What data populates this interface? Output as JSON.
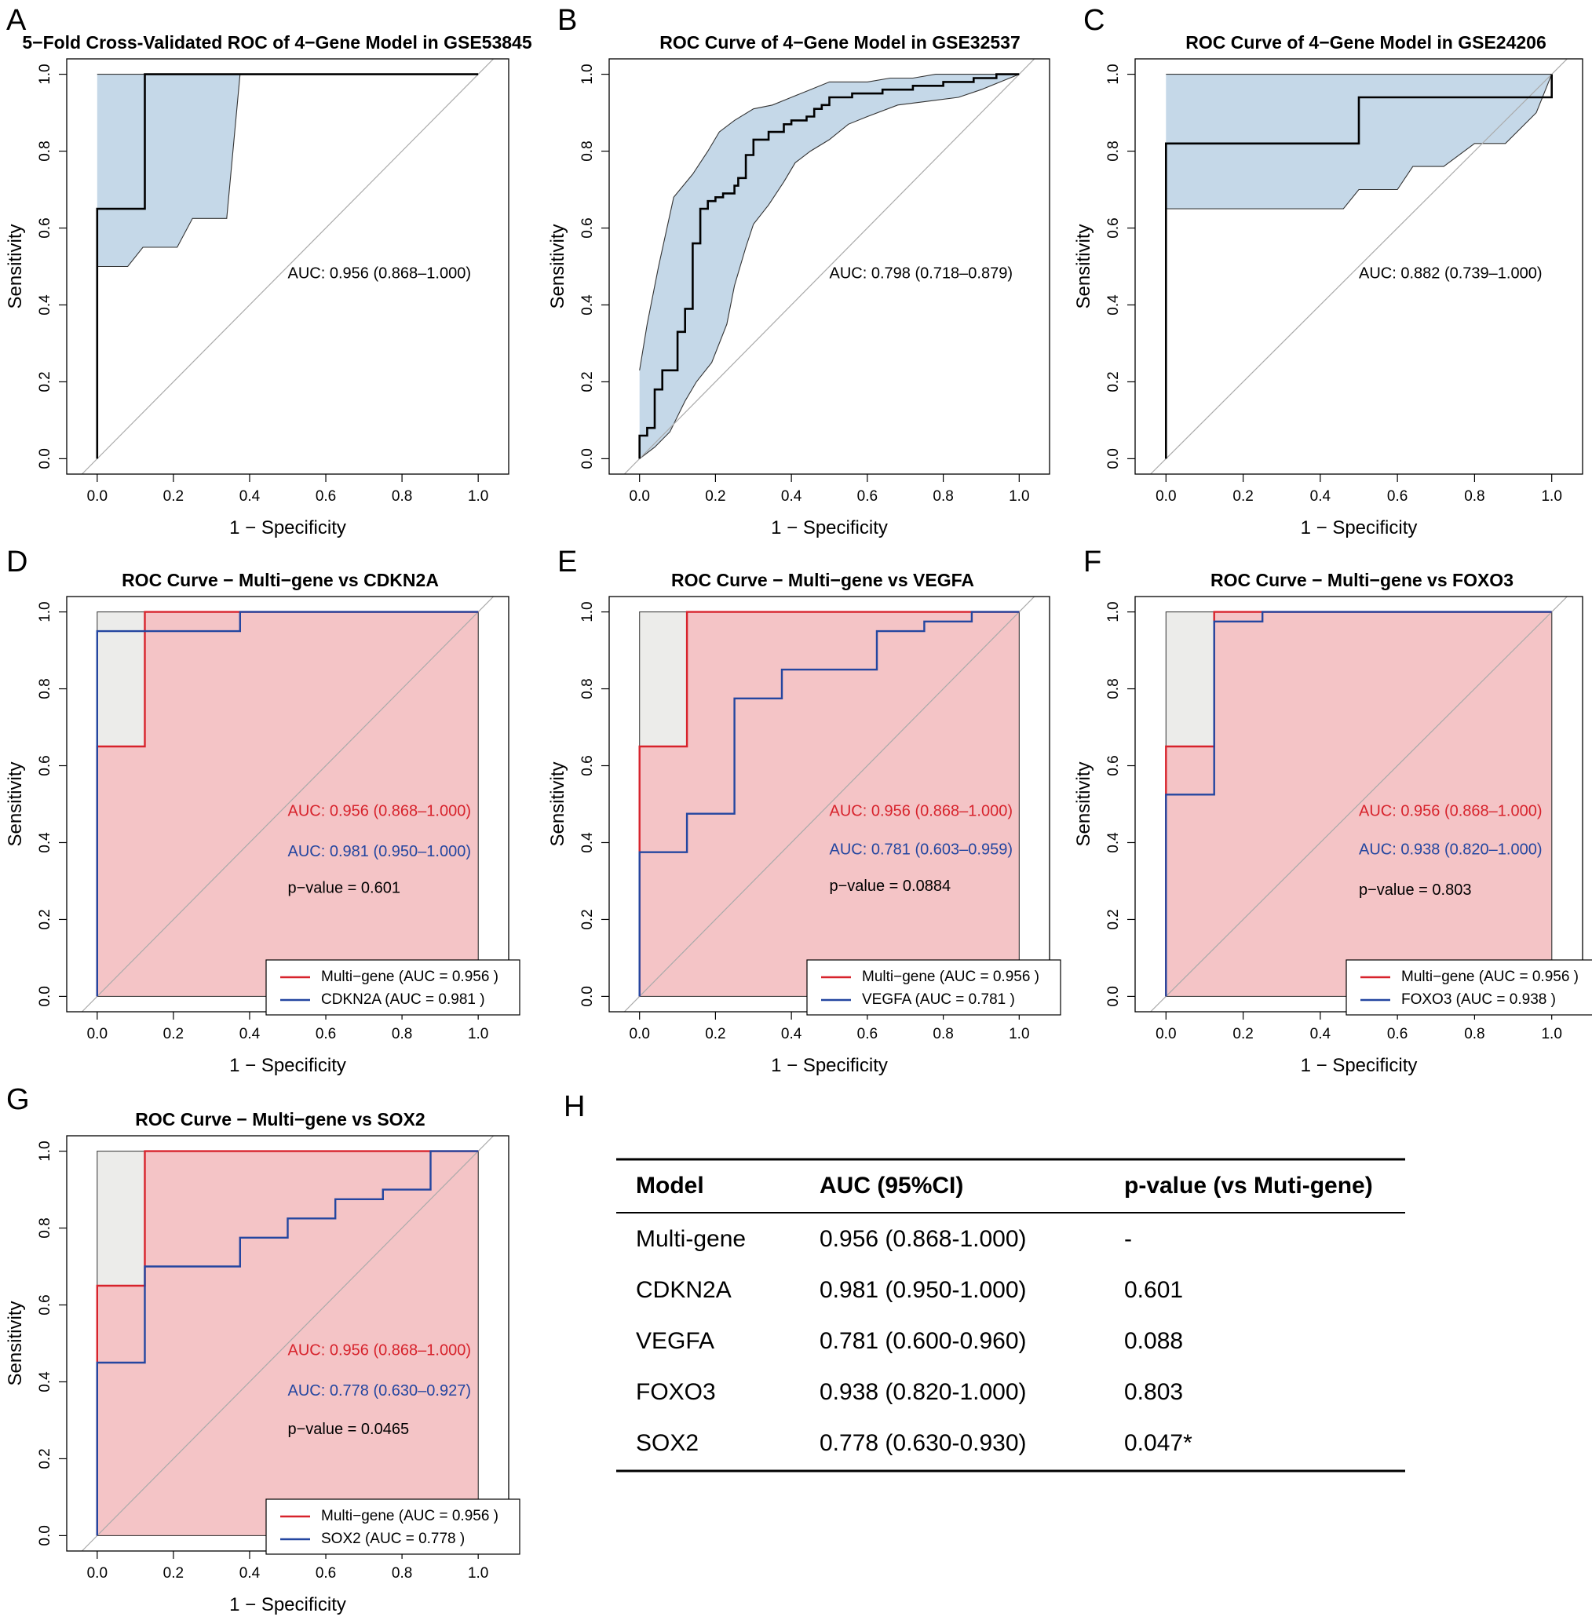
{
  "colors": {
    "ci_fill": "#c5d8e8",
    "multi_fill": "#f4c4c6",
    "comp_fill": "#ececea",
    "red": "#d7232c",
    "blue": "#2446a0",
    "diag": "#aaaaaa"
  },
  "axis_common": {
    "xlabel": "1 − Specificity",
    "ylabel": "Sensitivity",
    "xticks": [
      "0.0",
      "0.2",
      "0.4",
      "0.6",
      "0.8",
      "1.0"
    ],
    "yticks": [
      "0.0",
      "0.2",
      "0.4",
      "0.6",
      "0.8",
      "1.0"
    ],
    "xlim": [
      -0.08,
      1.08
    ],
    "ylim": [
      -0.04,
      1.04
    ]
  },
  "chart_data": [
    {
      "id": "A",
      "type": "line",
      "title": "5−Fold Cross-Validated ROC of 4−Gene Model in GSE53845",
      "curve": [
        [
          0,
          0
        ],
        [
          0,
          0.65
        ],
        [
          0.125,
          0.65
        ],
        [
          0.125,
          1
        ],
        [
          1,
          1
        ]
      ],
      "ci_upper": [
        [
          0,
          1
        ],
        [
          0.375,
          1
        ],
        [
          1,
          1
        ]
      ],
      "ci_lower": [
        [
          0,
          0.5
        ],
        [
          0.08,
          0.5
        ],
        [
          0.12,
          0.55
        ],
        [
          0.21,
          0.55
        ],
        [
          0.25,
          0.625
        ],
        [
          0.34,
          0.625
        ],
        [
          0.375,
          1
        ]
      ],
      "annotations": [
        {
          "text": "AUC: 0.956 (0.868–1.000)",
          "x": 0.5,
          "y": 0.48,
          "color": "black"
        }
      ]
    },
    {
      "id": "B",
      "type": "line",
      "title": "ROC Curve of 4−Gene Model in GSE32537",
      "curve": [
        [
          0,
          0
        ],
        [
          0,
          0.06
        ],
        [
          0.02,
          0.06
        ],
        [
          0.02,
          0.08
        ],
        [
          0.04,
          0.08
        ],
        [
          0.04,
          0.18
        ],
        [
          0.06,
          0.18
        ],
        [
          0.06,
          0.23
        ],
        [
          0.1,
          0.23
        ],
        [
          0.1,
          0.33
        ],
        [
          0.12,
          0.33
        ],
        [
          0.12,
          0.39
        ],
        [
          0.14,
          0.39
        ],
        [
          0.14,
          0.56
        ],
        [
          0.16,
          0.56
        ],
        [
          0.16,
          0.65
        ],
        [
          0.18,
          0.65
        ],
        [
          0.18,
          0.67
        ],
        [
          0.2,
          0.67
        ],
        [
          0.2,
          0.68
        ],
        [
          0.22,
          0.68
        ],
        [
          0.22,
          0.69
        ],
        [
          0.25,
          0.69
        ],
        [
          0.25,
          0.71
        ],
        [
          0.26,
          0.71
        ],
        [
          0.26,
          0.73
        ],
        [
          0.28,
          0.73
        ],
        [
          0.28,
          0.79
        ],
        [
          0.3,
          0.79
        ],
        [
          0.3,
          0.83
        ],
        [
          0.34,
          0.83
        ],
        [
          0.34,
          0.85
        ],
        [
          0.38,
          0.85
        ],
        [
          0.38,
          0.87
        ],
        [
          0.4,
          0.87
        ],
        [
          0.4,
          0.88
        ],
        [
          0.44,
          0.88
        ],
        [
          0.44,
          0.89
        ],
        [
          0.46,
          0.89
        ],
        [
          0.46,
          0.91
        ],
        [
          0.48,
          0.91
        ],
        [
          0.48,
          0.92
        ],
        [
          0.5,
          0.92
        ],
        [
          0.5,
          0.94
        ],
        [
          0.56,
          0.94
        ],
        [
          0.56,
          0.95
        ],
        [
          0.64,
          0.95
        ],
        [
          0.64,
          0.96
        ],
        [
          0.72,
          0.96
        ],
        [
          0.72,
          0.97
        ],
        [
          0.8,
          0.97
        ],
        [
          0.8,
          0.98
        ],
        [
          0.88,
          0.98
        ],
        [
          0.88,
          0.99
        ],
        [
          0.94,
          0.99
        ],
        [
          0.94,
          1
        ],
        [
          1,
          1
        ]
      ],
      "ci_upper": [
        [
          0,
          0.23
        ],
        [
          0.02,
          0.35
        ],
        [
          0.05,
          0.5
        ],
        [
          0.09,
          0.68
        ],
        [
          0.14,
          0.74
        ],
        [
          0.18,
          0.8
        ],
        [
          0.21,
          0.85
        ],
        [
          0.25,
          0.88
        ],
        [
          0.3,
          0.91
        ],
        [
          0.35,
          0.92
        ],
        [
          0.4,
          0.94
        ],
        [
          0.45,
          0.96
        ],
        [
          0.5,
          0.98
        ],
        [
          0.6,
          0.98
        ],
        [
          0.66,
          0.99
        ],
        [
          0.72,
          0.99
        ],
        [
          0.78,
          1
        ],
        [
          1,
          1
        ]
      ],
      "ci_lower": [
        [
          0,
          0
        ],
        [
          0.04,
          0.03
        ],
        [
          0.08,
          0.07
        ],
        [
          0.12,
          0.15
        ],
        [
          0.15,
          0.2
        ],
        [
          0.19,
          0.25
        ],
        [
          0.23,
          0.35
        ],
        [
          0.25,
          0.45
        ],
        [
          0.28,
          0.55
        ],
        [
          0.3,
          0.61
        ],
        [
          0.34,
          0.66
        ],
        [
          0.38,
          0.72
        ],
        [
          0.41,
          0.77
        ],
        [
          0.45,
          0.8
        ],
        [
          0.5,
          0.83
        ],
        [
          0.55,
          0.87
        ],
        [
          0.6,
          0.89
        ],
        [
          0.68,
          0.92
        ],
        [
          0.76,
          0.93
        ],
        [
          0.84,
          0.94
        ],
        [
          0.9,
          0.96
        ],
        [
          0.95,
          0.98
        ],
        [
          1,
          1
        ]
      ],
      "annotations": [
        {
          "text": "AUC: 0.798 (0.718–0.879)",
          "x": 0.5,
          "y": 0.48,
          "color": "black"
        }
      ]
    },
    {
      "id": "C",
      "type": "line",
      "title": "ROC Curve of 4−Gene Model in GSE24206",
      "curve": [
        [
          0,
          0
        ],
        [
          0,
          0.82
        ],
        [
          0.5,
          0.82
        ],
        [
          0.5,
          0.94
        ],
        [
          1,
          0.94
        ],
        [
          1,
          1
        ]
      ],
      "ci_upper": [
        [
          0,
          1
        ],
        [
          1,
          1
        ]
      ],
      "ci_lower": [
        [
          0,
          0.65
        ],
        [
          0.46,
          0.65
        ],
        [
          0.5,
          0.7
        ],
        [
          0.6,
          0.7
        ],
        [
          0.64,
          0.76
        ],
        [
          0.72,
          0.76
        ],
        [
          0.8,
          0.82
        ],
        [
          0.88,
          0.82
        ],
        [
          0.96,
          0.9
        ],
        [
          1,
          1
        ]
      ],
      "annotations": [
        {
          "text": "AUC: 0.882 (0.739–1.000)",
          "x": 0.5,
          "y": 0.48,
          "color": "black"
        }
      ]
    },
    {
      "id": "D",
      "type": "line",
      "title": "ROC Curve − Multi−gene vs CDKN2A",
      "multi_curve": [
        [
          0,
          0
        ],
        [
          0,
          0.65
        ],
        [
          0.125,
          0.65
        ],
        [
          0.125,
          1
        ],
        [
          1,
          1
        ]
      ],
      "comp_curve": [
        [
          0,
          0
        ],
        [
          0,
          0.95
        ],
        [
          0.375,
          0.95
        ],
        [
          0.375,
          1
        ],
        [
          1,
          1
        ]
      ],
      "annotations": [
        {
          "text": "AUC: 0.956 (0.868–1.000)",
          "x": 0.5,
          "y": 0.48,
          "color": "red"
        },
        {
          "text": "AUC: 0.981 (0.950–1.000)",
          "x": 0.5,
          "y": 0.375,
          "color": "blue"
        },
        {
          "text": "p−value = 0.601",
          "x": 0.5,
          "y": 0.28,
          "color": "black"
        }
      ],
      "legend": [
        "Multi−gene (AUC = 0.956 )",
        "CDKN2A (AUC = 0.981 )"
      ]
    },
    {
      "id": "E",
      "type": "line",
      "title": "ROC Curve − Multi−gene vs VEGFA",
      "multi_curve": [
        [
          0,
          0
        ],
        [
          0,
          0.65
        ],
        [
          0.125,
          0.65
        ],
        [
          0.125,
          1
        ],
        [
          1,
          1
        ]
      ],
      "comp_curve": [
        [
          0,
          0
        ],
        [
          0,
          0.375
        ],
        [
          0.125,
          0.375
        ],
        [
          0.125,
          0.475
        ],
        [
          0.25,
          0.475
        ],
        [
          0.25,
          0.775
        ],
        [
          0.375,
          0.775
        ],
        [
          0.375,
          0.85
        ],
        [
          0.625,
          0.85
        ],
        [
          0.625,
          0.95
        ],
        [
          0.75,
          0.95
        ],
        [
          0.75,
          0.975
        ],
        [
          0.875,
          0.975
        ],
        [
          0.875,
          1
        ],
        [
          1,
          1
        ]
      ],
      "annotations": [
        {
          "text": "AUC: 0.956 (0.868–1.000)",
          "x": 0.5,
          "y": 0.48,
          "color": "red"
        },
        {
          "text": "AUC: 0.781 (0.603–0.959)",
          "x": 0.5,
          "y": 0.38,
          "color": "blue"
        },
        {
          "text": "p−value = 0.0884",
          "x": 0.5,
          "y": 0.285,
          "color": "black"
        }
      ],
      "legend": [
        "Multi−gene (AUC = 0.956 )",
        "VEGFA (AUC = 0.781 )"
      ]
    },
    {
      "id": "F",
      "type": "line",
      "title": "ROC Curve − Multi−gene vs FOXO3",
      "multi_curve": [
        [
          0,
          0
        ],
        [
          0,
          0.65
        ],
        [
          0.125,
          0.65
        ],
        [
          0.125,
          1
        ],
        [
          1,
          1
        ]
      ],
      "comp_curve": [
        [
          0,
          0
        ],
        [
          0,
          0.525
        ],
        [
          0.125,
          0.525
        ],
        [
          0.125,
          0.975
        ],
        [
          0.25,
          0.975
        ],
        [
          0.25,
          1
        ],
        [
          1,
          1
        ]
      ],
      "annotations": [
        {
          "text": "AUC: 0.956 (0.868–1.000)",
          "x": 0.5,
          "y": 0.48,
          "color": "red"
        },
        {
          "text": "AUC: 0.938 (0.820–1.000)",
          "x": 0.5,
          "y": 0.38,
          "color": "blue"
        },
        {
          "text": "p−value = 0.803",
          "x": 0.5,
          "y": 0.275,
          "color": "black"
        }
      ],
      "legend": [
        "Multi−gene (AUC = 0.956 )",
        "FOXO3 (AUC = 0.938 )"
      ]
    },
    {
      "id": "G",
      "type": "line",
      "title": "ROC Curve − Multi−gene vs SOX2",
      "multi_curve": [
        [
          0,
          0
        ],
        [
          0,
          0.65
        ],
        [
          0.125,
          0.65
        ],
        [
          0.125,
          1
        ],
        [
          1,
          1
        ]
      ],
      "comp_curve": [
        [
          0,
          0
        ],
        [
          0,
          0.45
        ],
        [
          0.125,
          0.45
        ],
        [
          0.125,
          0.7
        ],
        [
          0.375,
          0.7
        ],
        [
          0.375,
          0.775
        ],
        [
          0.5,
          0.775
        ],
        [
          0.5,
          0.825
        ],
        [
          0.625,
          0.825
        ],
        [
          0.625,
          0.875
        ],
        [
          0.75,
          0.875
        ],
        [
          0.75,
          0.9
        ],
        [
          0.875,
          0.9
        ],
        [
          0.875,
          1
        ],
        [
          1,
          1
        ]
      ],
      "annotations": [
        {
          "text": "AUC: 0.956 (0.868–1.000)",
          "x": 0.5,
          "y": 0.48,
          "color": "red"
        },
        {
          "text": "AUC: 0.778 (0.630–0.927)",
          "x": 0.5,
          "y": 0.375,
          "color": "blue"
        },
        {
          "text": "p−value = 0.0465",
          "x": 0.5,
          "y": 0.275,
          "color": "black"
        }
      ],
      "legend": [
        "Multi−gene (AUC = 0.956 )",
        "SOX2 (AUC = 0.778 )"
      ]
    },
    {
      "id": "H",
      "type": "table",
      "columns": [
        "Model",
        "AUC (95%CI)",
        "p-value (vs Muti-gene)"
      ],
      "rows": [
        [
          "Multi-gene",
          "0.956 (0.868-1.000)",
          "-"
        ],
        [
          "CDKN2A",
          "0.981 (0.950-1.000)",
          "0.601"
        ],
        [
          "VEGFA",
          "0.781 (0.600-0.960)",
          "0.088"
        ],
        [
          "FOXO3",
          "0.938 (0.820-1.000)",
          "0.803"
        ],
        [
          "SOX2",
          "0.778 (0.630-0.930)",
          "0.047*"
        ]
      ]
    }
  ]
}
